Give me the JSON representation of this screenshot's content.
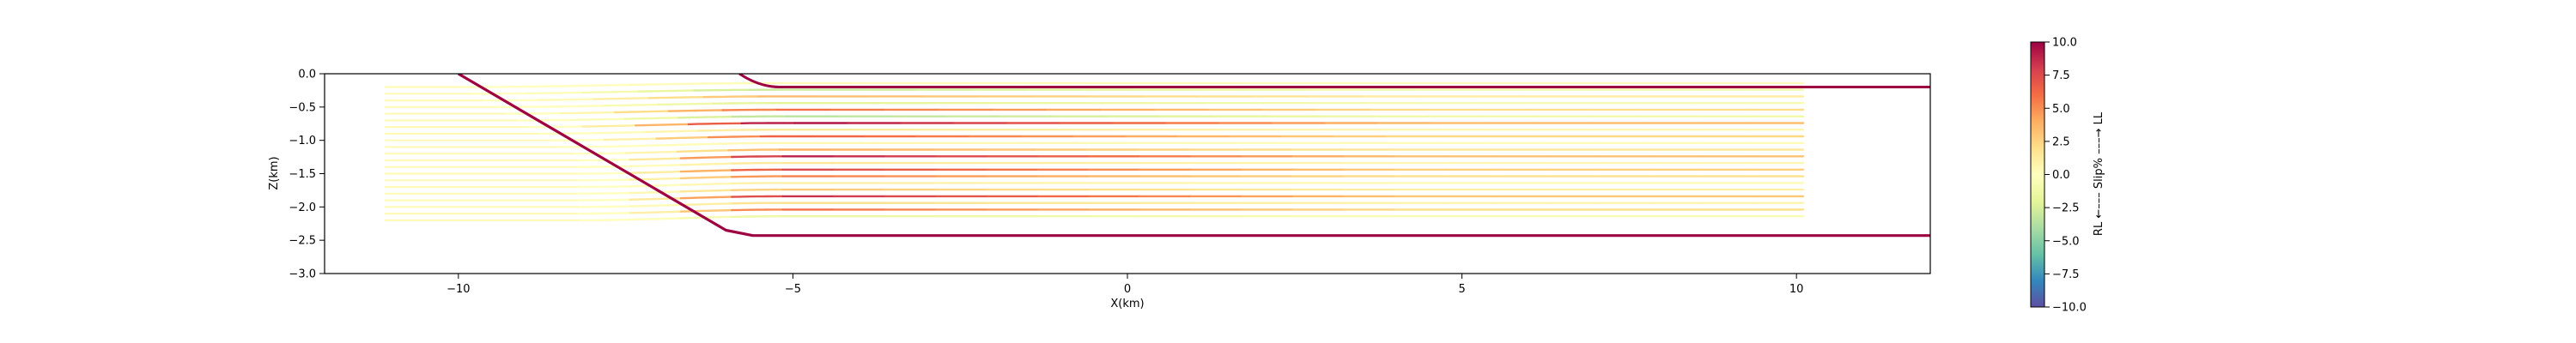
{
  "chart_data": {
    "type": "line",
    "xlabel": "X(km)",
    "ylabel": "Z(km)",
    "xlim": [
      -12,
      12
    ],
    "ylim": [
      -3.0,
      0.0
    ],
    "xticks": [
      -10,
      -5,
      0,
      5,
      10
    ],
    "xtick_labels": [
      "−10",
      "−5",
      "0",
      "5",
      "10"
    ],
    "yticks": [
      0.0,
      -0.5,
      -1.0,
      -1.5,
      -2.0,
      -2.5,
      -3.0
    ],
    "ytick_labels": [
      "0.0",
      "−0.5",
      "−1.0",
      "−1.5",
      "−2.0",
      "−2.5",
      "−3.0"
    ],
    "fault": {
      "x": [
        -10.0,
        -6.0,
        -5.6,
        12.0
      ],
      "z": [
        0.0,
        -2.35,
        -2.43,
        -2.43
      ],
      "color": "#9e0142"
    },
    "surface_fault": {
      "x": [
        -5.8,
        -5.2,
        12.0
      ],
      "z": [
        0.0,
        -0.2,
        -0.2
      ]
    },
    "layers": {
      "depths": [
        -0.2,
        -0.3,
        -0.4,
        -0.5,
        -0.6,
        -0.7,
        -0.8,
        -0.9,
        -1.0,
        -1.1,
        -1.2,
        -1.3,
        -1.4,
        -1.5,
        -1.6,
        -1.7,
        -1.8,
        -1.9,
        -2.0,
        -2.1,
        -2.2
      ],
      "x_start": -11.1,
      "x_end": 10.1,
      "fold_start_x": -8.2,
      "fold_end_x": -5.2,
      "uplift_km": 0.06,
      "slip_percent": [
        0.3,
        -3.0,
        3.5,
        -2.0,
        6.0,
        -3.5,
        9.5,
        1.5,
        6.5,
        0.5,
        4.0,
        9.0,
        1.5,
        7.5,
        5.5,
        1.0,
        3.0,
        8.5,
        2.0,
        6.0,
        -1.5
      ]
    },
    "colorbar": {
      "label": "RL ←––– Slip% –––→ LL",
      "min": -10.0,
      "max": 10.0,
      "ticks": [
        10.0,
        7.5,
        5.0,
        2.5,
        0.0,
        -2.5,
        -5.0,
        -7.5,
        -10.0
      ],
      "tick_labels": [
        "10.0",
        "7.5",
        "5.0",
        "2.5",
        "0.0",
        "−2.5",
        "−5.0",
        "−7.5",
        "−10.0"
      ],
      "colormap": "Spectral_r",
      "stops": [
        "#5e4fa2",
        "#3288bd",
        "#66c2a5",
        "#abdda4",
        "#e6f598",
        "#ffffbf",
        "#fee08b",
        "#fdae61",
        "#f46d43",
        "#d53e4f",
        "#9e0142"
      ]
    }
  }
}
